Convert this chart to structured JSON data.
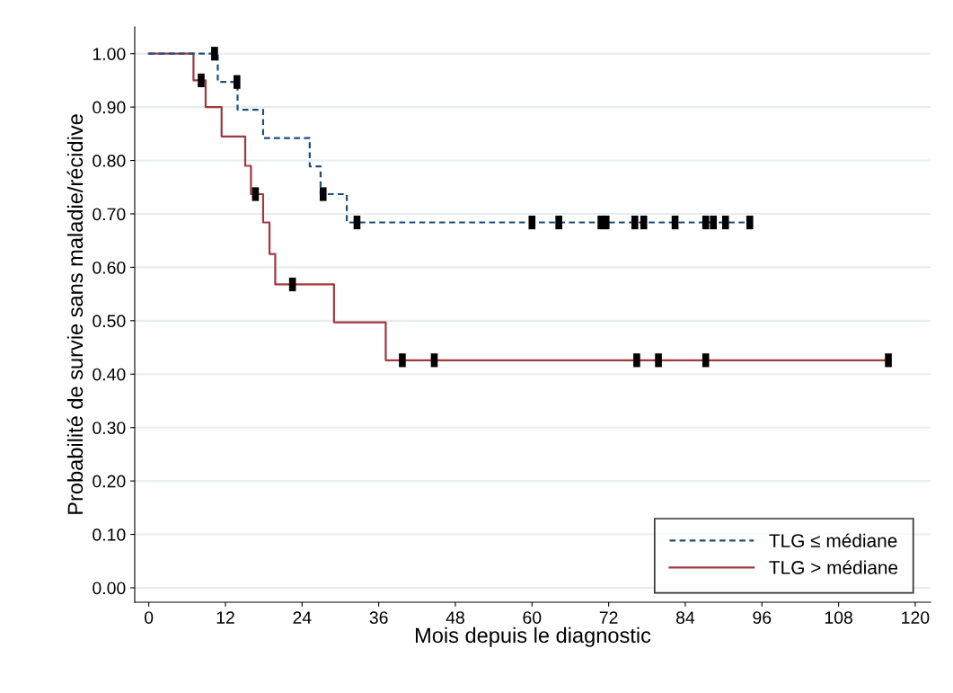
{
  "chart_data": {
    "type": "step",
    "xlabel": "Mois depuis le diagnostic",
    "ylabel": "Probabilité de survie sans maladie/récidive",
    "xlim": [
      -2.2,
      122.4
    ],
    "ylim": [
      -0.027,
      1.05
    ],
    "xticks": [
      0,
      12,
      24,
      36,
      48,
      60,
      72,
      84,
      96,
      108,
      120
    ],
    "yticks": [
      {
        "value": 0,
        "label": "0.00"
      },
      {
        "value": 0.1,
        "label": "0.10"
      },
      {
        "value": 0.2,
        "label": "0.20"
      },
      {
        "value": 0.3,
        "label": "0.30"
      },
      {
        "value": 0.4,
        "label": "0.40"
      },
      {
        "value": 0.5,
        "label": "0.50"
      },
      {
        "value": 0.6,
        "label": "0.60"
      },
      {
        "value": 0.7,
        "label": "0.70"
      },
      {
        "value": 0.8,
        "label": "0.80"
      },
      {
        "value": 0.9,
        "label": "0.90"
      },
      {
        "value": 1,
        "label": "1.00"
      }
    ],
    "grid": "y",
    "legend": "bottom right",
    "series": [
      {
        "name": "TLG ≤ médiane",
        "color": "#1f4e79",
        "line_style": "dashed",
        "x": [
          0,
          10.8,
          13.9,
          17.9,
          25.2,
          26.9,
          31,
          94.1
        ],
        "values": [
          1,
          0.947,
          0.895,
          0.842,
          0.789,
          0.737,
          0.684,
          0.684
        ]
      },
      {
        "name": "TLG > médiane",
        "color": "#9e3a40",
        "line_style": "solid",
        "x": [
          0,
          7.0,
          8.9,
          11.4,
          15.1,
          16.0,
          17.9,
          18.9,
          19.8,
          29.0,
          37.1,
          115.8
        ],
        "values": [
          1,
          0.95,
          0.9,
          0.845,
          0.79,
          0.737,
          0.684,
          0.625,
          0.568,
          0.497,
          0.426,
          0.426
        ]
      },
      {
        "type": "scatter",
        "marker": "square",
        "color": "#000000",
        "x": [
          10.3,
          13.8,
          27.3,
          32.6,
          60,
          64.2,
          70.8,
          71.6,
          76.1,
          77.5,
          82.4,
          87.2,
          88.4,
          90.3,
          94.1
        ],
        "values": [
          1,
          0.947,
          0.737,
          0.684,
          0.684,
          0.684,
          0.684,
          0.684,
          0.684,
          0.684,
          0.684,
          0.684,
          0.684,
          0.684,
          0.684
        ]
      },
      {
        "type": "scatter",
        "marker": "square",
        "color": "#000000",
        "x": [
          8.2,
          16.7,
          22.5,
          39.7,
          44.7,
          76.4,
          79.8,
          87.2,
          115.8
        ],
        "values": [
          0.95,
          0.737,
          0.568,
          0.426,
          0.426,
          0.426,
          0.426,
          0.426,
          0.426
        ]
      }
    ]
  }
}
